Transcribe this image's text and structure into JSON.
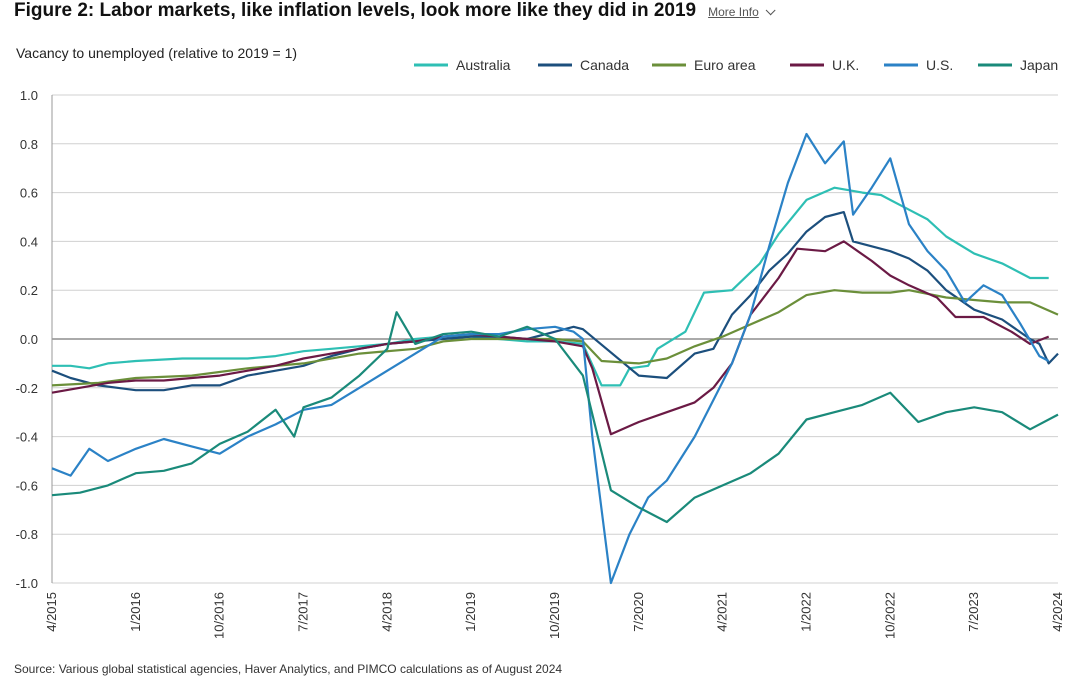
{
  "header": {
    "title": "Figure 2: Labor markets, like inflation levels, look more like they did in 2019",
    "more_info_label": "More Info"
  },
  "footer": {
    "source": "Source: Various global statistical agencies, Haver Analytics, and PIMCO calculations as of August 2024"
  },
  "chart_data": {
    "type": "line",
    "title": "Figure 2: Labor markets, like inflation levels, look more like they did in 2019",
    "ylabel": "Vacancy to unemployed (relative to 2019 = 1)",
    "xlabel": "",
    "ylim": [
      -1.0,
      1.0
    ],
    "yticks": [
      "1.0",
      "0.8",
      "0.6",
      "0.4",
      "0.2",
      "0.0",
      "-0.2",
      "-0.4",
      "-0.6",
      "-0.8",
      "-1.0"
    ],
    "x_range": [
      "2015-04",
      "2024-04"
    ],
    "xticks": [
      "4/2015",
      "1/2016",
      "10/2016",
      "7/2017",
      "4/2018",
      "1/2019",
      "10/2019",
      "7/2020",
      "4/2021",
      "1/2022",
      "10/2022",
      "7/2023",
      "4/2024"
    ],
    "grid": true,
    "legend_position": "top",
    "series": [
      {
        "name": "Australia",
        "color": "#2ebfb4",
        "points": [
          [
            "2015-04",
            -0.11
          ],
          [
            "2015-06",
            -0.11
          ],
          [
            "2015-08",
            -0.12
          ],
          [
            "2015-10",
            -0.1
          ],
          [
            "2016-01",
            -0.09
          ],
          [
            "2016-06",
            -0.08
          ],
          [
            "2017-01",
            -0.08
          ],
          [
            "2017-04",
            -0.07
          ],
          [
            "2017-07",
            -0.05
          ],
          [
            "2017-10",
            -0.04
          ],
          [
            "2018-01",
            -0.03
          ],
          [
            "2018-04",
            -0.02
          ],
          [
            "2018-07",
            0.0
          ],
          [
            "2018-10",
            0.01
          ],
          [
            "2019-01",
            0.01
          ],
          [
            "2019-04",
            0.0
          ],
          [
            "2019-07",
            -0.01
          ],
          [
            "2019-10",
            -0.01
          ],
          [
            "2020-01",
            -0.02
          ],
          [
            "2020-03",
            -0.19
          ],
          [
            "2020-05",
            -0.19
          ],
          [
            "2020-06",
            -0.12
          ],
          [
            "2020-08",
            -0.11
          ],
          [
            "2020-09",
            -0.04
          ],
          [
            "2020-12",
            0.03
          ],
          [
            "2021-02",
            0.19
          ],
          [
            "2021-05",
            0.2
          ],
          [
            "2021-08",
            0.31
          ],
          [
            "2021-10",
            0.43
          ],
          [
            "2022-01",
            0.57
          ],
          [
            "2022-04",
            0.62
          ],
          [
            "2022-07",
            0.6
          ],
          [
            "2022-09",
            0.59
          ],
          [
            "2022-12",
            0.53
          ],
          [
            "2023-02",
            0.49
          ],
          [
            "2023-04",
            0.42
          ],
          [
            "2023-07",
            0.35
          ],
          [
            "2023-10",
            0.31
          ],
          [
            "2024-01",
            0.25
          ],
          [
            "2024-03",
            0.25
          ]
        ]
      },
      {
        "name": "Canada",
        "color": "#1c4f7d",
        "points": [
          [
            "2015-04",
            -0.13
          ],
          [
            "2015-06",
            -0.16
          ],
          [
            "2015-09",
            -0.19
          ],
          [
            "2016-01",
            -0.21
          ],
          [
            "2016-04",
            -0.21
          ],
          [
            "2016-07",
            -0.19
          ],
          [
            "2016-10",
            -0.19
          ],
          [
            "2017-01",
            -0.15
          ],
          [
            "2017-04",
            -0.13
          ],
          [
            "2017-07",
            -0.11
          ],
          [
            "2017-10",
            -0.07
          ],
          [
            "2018-01",
            -0.04
          ],
          [
            "2018-04",
            -0.02
          ],
          [
            "2018-07",
            -0.01
          ],
          [
            "2018-10",
            0.0
          ],
          [
            "2019-01",
            0.01
          ],
          [
            "2019-04",
            0.01
          ],
          [
            "2019-07",
            0.0
          ],
          [
            "2019-10",
            0.03
          ],
          [
            "2019-12",
            0.05
          ],
          [
            "2020-01",
            0.04
          ],
          [
            "2020-07",
            -0.15
          ],
          [
            "2020-10",
            -0.16
          ],
          [
            "2021-01",
            -0.06
          ],
          [
            "2021-03",
            -0.04
          ],
          [
            "2021-05",
            0.1
          ],
          [
            "2021-07",
            0.18
          ],
          [
            "2021-09",
            0.28
          ],
          [
            "2021-11",
            0.35
          ],
          [
            "2022-01",
            0.44
          ],
          [
            "2022-03",
            0.5
          ],
          [
            "2022-05",
            0.52
          ],
          [
            "2022-06",
            0.4
          ],
          [
            "2022-08",
            0.38
          ],
          [
            "2022-10",
            0.36
          ],
          [
            "2022-12",
            0.33
          ],
          [
            "2023-02",
            0.28
          ],
          [
            "2023-04",
            0.2
          ],
          [
            "2023-07",
            0.12
          ],
          [
            "2023-10",
            0.08
          ],
          [
            "2024-01",
            0.0
          ],
          [
            "2024-02",
            -0.02
          ],
          [
            "2024-03",
            -0.1
          ],
          [
            "2024-04",
            -0.06
          ]
        ]
      },
      {
        "name": "Euro area",
        "color": "#6b8f3a",
        "points": [
          [
            "2015-04",
            -0.19
          ],
          [
            "2015-09",
            -0.18
          ],
          [
            "2016-01",
            -0.16
          ],
          [
            "2016-07",
            -0.15
          ],
          [
            "2017-01",
            -0.12
          ],
          [
            "2017-07",
            -0.1
          ],
          [
            "2018-01",
            -0.06
          ],
          [
            "2018-07",
            -0.04
          ],
          [
            "2018-10",
            -0.01
          ],
          [
            "2019-01",
            0.0
          ],
          [
            "2019-07",
            0.0
          ],
          [
            "2019-10",
            0.0
          ],
          [
            "2020-01",
            -0.01
          ],
          [
            "2020-03",
            -0.09
          ],
          [
            "2020-07",
            -0.1
          ],
          [
            "2020-10",
            -0.08
          ],
          [
            "2021-01",
            -0.03
          ],
          [
            "2021-04",
            0.01
          ],
          [
            "2021-07",
            0.06
          ],
          [
            "2021-10",
            0.11
          ],
          [
            "2022-01",
            0.18
          ],
          [
            "2022-04",
            0.2
          ],
          [
            "2022-07",
            0.19
          ],
          [
            "2022-10",
            0.19
          ],
          [
            "2022-12",
            0.2
          ],
          [
            "2023-04",
            0.17
          ],
          [
            "2023-07",
            0.16
          ],
          [
            "2023-10",
            0.15
          ],
          [
            "2024-01",
            0.15
          ],
          [
            "2024-04",
            0.1
          ]
        ]
      },
      {
        "name": "U.K.",
        "color": "#6b1a45",
        "points": [
          [
            "2015-04",
            -0.22
          ],
          [
            "2015-07",
            -0.2
          ],
          [
            "2015-10",
            -0.18
          ],
          [
            "2016-01",
            -0.17
          ],
          [
            "2016-04",
            -0.17
          ],
          [
            "2016-07",
            -0.16
          ],
          [
            "2016-10",
            -0.15
          ],
          [
            "2017-01",
            -0.13
          ],
          [
            "2017-04",
            -0.11
          ],
          [
            "2017-07",
            -0.08
          ],
          [
            "2017-10",
            -0.06
          ],
          [
            "2018-01",
            -0.04
          ],
          [
            "2018-04",
            -0.02
          ],
          [
            "2018-07",
            -0.01
          ],
          [
            "2018-10",
            0.01
          ],
          [
            "2019-01",
            0.02
          ],
          [
            "2019-04",
            0.01
          ],
          [
            "2019-07",
            0.0
          ],
          [
            "2019-10",
            -0.01
          ],
          [
            "2020-01",
            -0.03
          ],
          [
            "2020-02",
            -0.12
          ],
          [
            "2020-04",
            -0.39
          ],
          [
            "2020-07",
            -0.34
          ],
          [
            "2020-10",
            -0.3
          ],
          [
            "2021-01",
            -0.26
          ],
          [
            "2021-03",
            -0.2
          ],
          [
            "2021-05",
            -0.1
          ],
          [
            "2021-07",
            0.1
          ],
          [
            "2021-10",
            0.25
          ],
          [
            "2021-12",
            0.37
          ],
          [
            "2022-03",
            0.36
          ],
          [
            "2022-05",
            0.4
          ],
          [
            "2022-08",
            0.32
          ],
          [
            "2022-10",
            0.26
          ],
          [
            "2022-12",
            0.22
          ],
          [
            "2023-03",
            0.17
          ],
          [
            "2023-05",
            0.09
          ],
          [
            "2023-08",
            0.09
          ],
          [
            "2023-11",
            0.03
          ],
          [
            "2024-01",
            -0.02
          ],
          [
            "2024-03",
            0.01
          ]
        ]
      },
      {
        "name": "U.S.",
        "color": "#2b82c6",
        "points": [
          [
            "2015-04",
            -0.53
          ],
          [
            "2015-06",
            -0.56
          ],
          [
            "2015-08",
            -0.45
          ],
          [
            "2015-10",
            -0.5
          ],
          [
            "2016-01",
            -0.45
          ],
          [
            "2016-04",
            -0.41
          ],
          [
            "2016-07",
            -0.44
          ],
          [
            "2016-10",
            -0.47
          ],
          [
            "2017-01",
            -0.4
          ],
          [
            "2017-04",
            -0.35
          ],
          [
            "2017-07",
            -0.29
          ],
          [
            "2017-10",
            -0.27
          ],
          [
            "2018-01",
            -0.2
          ],
          [
            "2018-04",
            -0.13
          ],
          [
            "2018-07",
            -0.06
          ],
          [
            "2018-10",
            0.01
          ],
          [
            "2019-01",
            0.02
          ],
          [
            "2019-04",
            0.02
          ],
          [
            "2019-07",
            0.04
          ],
          [
            "2019-10",
            0.05
          ],
          [
            "2019-12",
            0.03
          ],
          [
            "2020-01",
            0.0
          ],
          [
            "2020-02",
            -0.4
          ],
          [
            "2020-04",
            -1.0
          ],
          [
            "2020-06",
            -0.8
          ],
          [
            "2020-08",
            -0.65
          ],
          [
            "2020-10",
            -0.58
          ],
          [
            "2021-01",
            -0.4
          ],
          [
            "2021-03",
            -0.25
          ],
          [
            "2021-05",
            -0.1
          ],
          [
            "2021-07",
            0.1
          ],
          [
            "2021-09",
            0.38
          ],
          [
            "2021-11",
            0.64
          ],
          [
            "2022-01",
            0.84
          ],
          [
            "2022-03",
            0.72
          ],
          [
            "2022-05",
            0.81
          ],
          [
            "2022-06",
            0.51
          ],
          [
            "2022-08",
            0.62
          ],
          [
            "2022-10",
            0.74
          ],
          [
            "2022-12",
            0.47
          ],
          [
            "2023-02",
            0.36
          ],
          [
            "2023-04",
            0.28
          ],
          [
            "2023-06",
            0.15
          ],
          [
            "2023-08",
            0.22
          ],
          [
            "2023-10",
            0.18
          ],
          [
            "2023-12",
            0.06
          ],
          [
            "2024-02",
            -0.07
          ],
          [
            "2024-03",
            -0.09
          ]
        ]
      },
      {
        "name": "Japan",
        "color": "#1a8a7a",
        "points": [
          [
            "2015-04",
            -0.64
          ],
          [
            "2015-07",
            -0.63
          ],
          [
            "2015-10",
            -0.6
          ],
          [
            "2016-01",
            -0.55
          ],
          [
            "2016-04",
            -0.54
          ],
          [
            "2016-07",
            -0.51
          ],
          [
            "2016-10",
            -0.43
          ],
          [
            "2017-01",
            -0.38
          ],
          [
            "2017-04",
            -0.29
          ],
          [
            "2017-06",
            -0.4
          ],
          [
            "2017-07",
            -0.28
          ],
          [
            "2017-10",
            -0.24
          ],
          [
            "2018-01",
            -0.15
          ],
          [
            "2018-04",
            -0.04
          ],
          [
            "2018-05",
            0.11
          ],
          [
            "2018-07",
            -0.02
          ],
          [
            "2018-10",
            0.02
          ],
          [
            "2019-01",
            0.03
          ],
          [
            "2019-04",
            0.01
          ],
          [
            "2019-07",
            0.05
          ],
          [
            "2019-10",
            0.0
          ],
          [
            "2020-01",
            -0.15
          ],
          [
            "2020-04",
            -0.62
          ],
          [
            "2020-07",
            -0.69
          ],
          [
            "2020-10",
            -0.75
          ],
          [
            "2021-01",
            -0.65
          ],
          [
            "2021-04",
            -0.6
          ],
          [
            "2021-07",
            -0.55
          ],
          [
            "2021-10",
            -0.47
          ],
          [
            "2022-01",
            -0.33
          ],
          [
            "2022-04",
            -0.3
          ],
          [
            "2022-07",
            -0.27
          ],
          [
            "2022-10",
            -0.22
          ],
          [
            "2023-01",
            -0.34
          ],
          [
            "2023-04",
            -0.3
          ],
          [
            "2023-07",
            -0.28
          ],
          [
            "2023-10",
            -0.3
          ],
          [
            "2024-01",
            -0.37
          ],
          [
            "2024-04",
            -0.31
          ]
        ]
      }
    ]
  }
}
